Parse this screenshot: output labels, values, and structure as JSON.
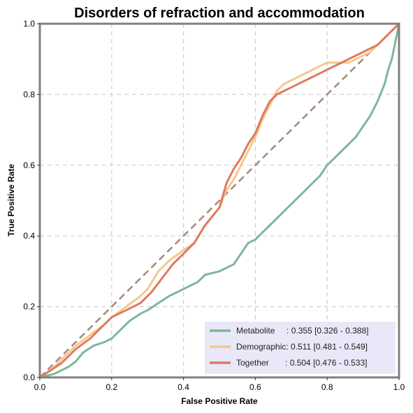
{
  "chart_data": {
    "type": "line",
    "title": "Disorders of refraction and accommodation",
    "xlabel": "False Positive Rate",
    "ylabel": "True Positive Rate",
    "xlim": [
      0,
      1
    ],
    "ylim": [
      0,
      1
    ],
    "xticks": [
      0.0,
      0.2,
      0.4,
      0.6,
      0.8,
      1.0
    ],
    "yticks": [
      0.0,
      0.2,
      0.4,
      0.6,
      0.8,
      1.0
    ],
    "xtick_labels": [
      "0.0",
      "0.2",
      "0.4",
      "0.6",
      "0.8",
      "1.0"
    ],
    "ytick_labels": [
      "0.0",
      "0.2",
      "0.4",
      "0.6",
      "0.8",
      "1.0"
    ],
    "grid": true,
    "legend_position": "bottom-right",
    "diagonal": {
      "x": [
        0,
        1
      ],
      "y": [
        0,
        1
      ],
      "color": "#a88a7e",
      "style": "dashed"
    },
    "series": [
      {
        "name": "Metabolite",
        "legend_prefix": "Metabolite     ",
        "legend_value": ": 0.355 [0.326 - 0.388]",
        "color": "#7fb69a",
        "x": [
          0,
          0.02,
          0.04,
          0.06,
          0.08,
          0.1,
          0.12,
          0.15,
          0.18,
          0.2,
          0.22,
          0.25,
          0.28,
          0.3,
          0.33,
          0.36,
          0.4,
          0.44,
          0.46,
          0.5,
          0.52,
          0.54,
          0.56,
          0.58,
          0.6,
          0.62,
          0.64,
          0.66,
          0.68,
          0.7,
          0.72,
          0.74,
          0.76,
          0.78,
          0.8,
          0.82,
          0.84,
          0.86,
          0.88,
          0.9,
          0.92,
          0.94,
          0.96,
          0.97,
          0.98,
          0.99,
          1.0
        ],
        "y": [
          0,
          0.005,
          0.01,
          0.02,
          0.03,
          0.045,
          0.07,
          0.09,
          0.1,
          0.11,
          0.13,
          0.16,
          0.18,
          0.19,
          0.21,
          0.23,
          0.25,
          0.27,
          0.29,
          0.3,
          0.31,
          0.32,
          0.35,
          0.38,
          0.39,
          0.41,
          0.43,
          0.45,
          0.47,
          0.49,
          0.51,
          0.53,
          0.55,
          0.57,
          0.6,
          0.62,
          0.64,
          0.66,
          0.68,
          0.71,
          0.74,
          0.78,
          0.83,
          0.87,
          0.9,
          0.95,
          1.0
        ]
      },
      {
        "name": "Demographic:",
        "legend_prefix": "Demographic",
        "legend_value": ": 0.511 [0.481 - 0.549]",
        "color": "#f3c98b",
        "x": [
          0,
          0.03,
          0.06,
          0.1,
          0.14,
          0.18,
          0.2,
          0.24,
          0.28,
          0.3,
          0.33,
          0.36,
          0.4,
          0.43,
          0.46,
          0.5,
          0.52,
          0.54,
          0.56,
          0.58,
          0.6,
          0.62,
          0.64,
          0.66,
          0.68,
          0.7,
          0.72,
          0.74,
          0.76,
          0.78,
          0.8,
          0.82,
          0.84,
          0.86,
          0.88,
          0.9,
          0.92,
          0.94,
          0.96,
          0.98,
          1.0
        ],
        "y": [
          0,
          0.02,
          0.05,
          0.09,
          0.12,
          0.15,
          0.17,
          0.2,
          0.23,
          0.25,
          0.3,
          0.33,
          0.36,
          0.38,
          0.43,
          0.48,
          0.53,
          0.56,
          0.6,
          0.64,
          0.68,
          0.73,
          0.77,
          0.81,
          0.83,
          0.84,
          0.85,
          0.86,
          0.87,
          0.88,
          0.89,
          0.89,
          0.89,
          0.89,
          0.9,
          0.91,
          0.92,
          0.94,
          0.96,
          0.98,
          1.0
        ]
      },
      {
        "name": "Together",
        "legend_prefix": "Together       ",
        "legend_value": ": 0.504 [0.476 - 0.533]",
        "color": "#e07a5f",
        "x": [
          0,
          0.03,
          0.06,
          0.1,
          0.14,
          0.18,
          0.2,
          0.24,
          0.28,
          0.31,
          0.34,
          0.37,
          0.4,
          0.43,
          0.46,
          0.5,
          0.52,
          0.54,
          0.56,
          0.58,
          0.6,
          0.62,
          0.64,
          0.66,
          0.68,
          0.7,
          0.72,
          0.74,
          0.76,
          0.78,
          0.8,
          0.82,
          0.84,
          0.86,
          0.88,
          0.9,
          0.92,
          0.94,
          0.96,
          0.98,
          1.0
        ],
        "y": [
          0,
          0.02,
          0.04,
          0.08,
          0.11,
          0.15,
          0.17,
          0.19,
          0.21,
          0.24,
          0.28,
          0.32,
          0.35,
          0.38,
          0.43,
          0.48,
          0.55,
          0.59,
          0.62,
          0.66,
          0.69,
          0.74,
          0.78,
          0.8,
          0.81,
          0.82,
          0.83,
          0.84,
          0.85,
          0.86,
          0.87,
          0.88,
          0.89,
          0.9,
          0.91,
          0.92,
          0.93,
          0.94,
          0.96,
          0.98,
          1.0
        ]
      }
    ]
  }
}
